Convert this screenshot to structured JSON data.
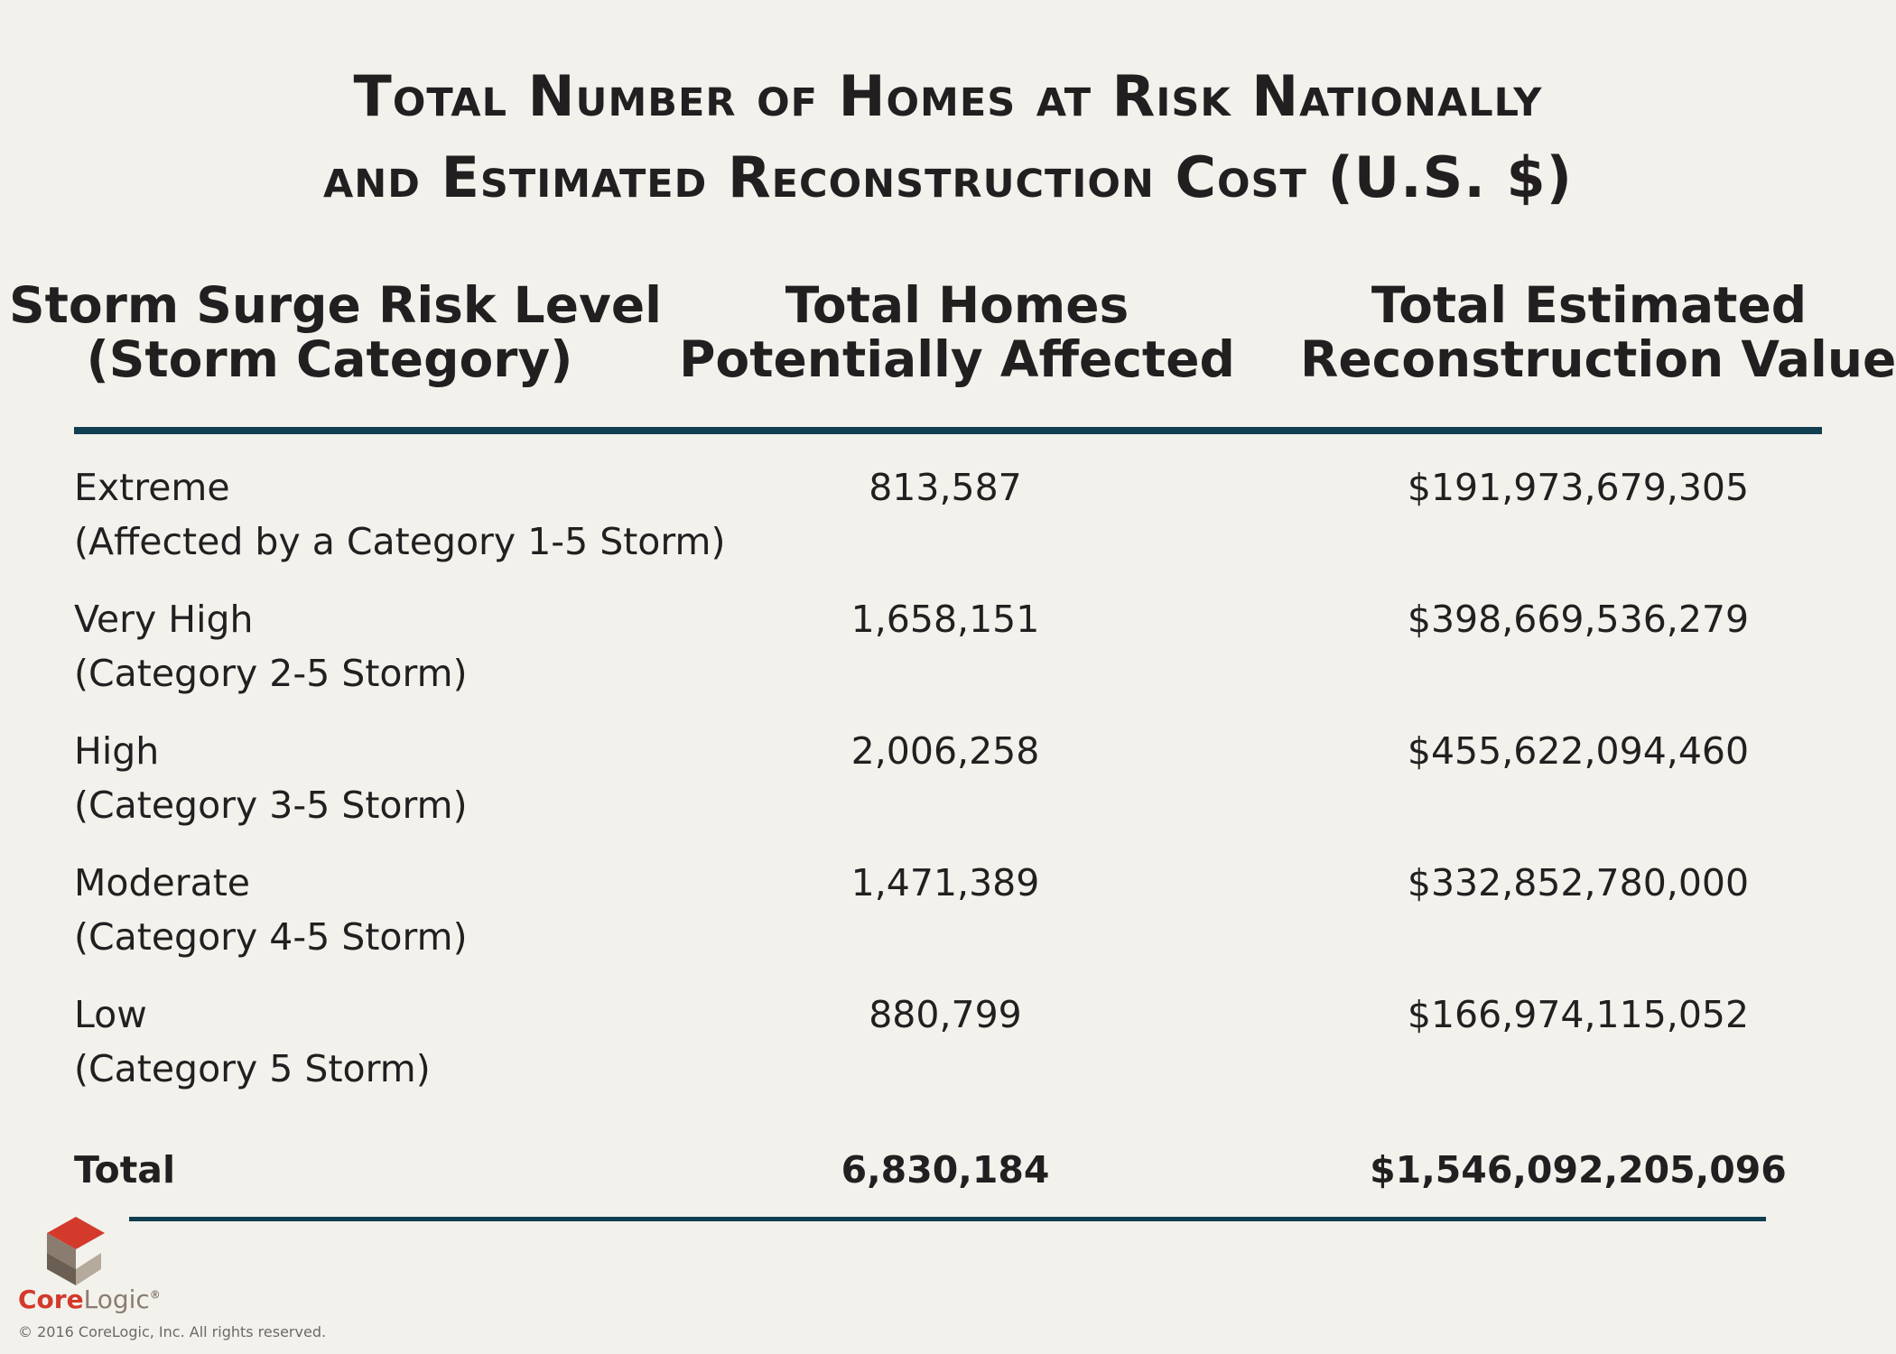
{
  "title": {
    "line1": "Total Number of Homes at Risk Nationally",
    "line2": "and Estimated Reconstruction Cost (U.S. $)"
  },
  "chart_data": {
    "type": "table",
    "title": "Total Number of Homes at Risk Nationally and Estimated Reconstruction Cost (U.S. $)",
    "columns": [
      {
        "line1": "Storm Surge Risk Level",
        "line2": "(Storm Category)"
      },
      {
        "line1": "Total Homes",
        "line2": "Potentially Affected"
      },
      {
        "line1": "Total Estimated",
        "line2": "Reconstruction Value"
      }
    ],
    "rows": [
      {
        "level": "Extreme",
        "category": "(Affected by a Category 1-5 Storm)",
        "homes": "813,587",
        "value": "$191,973,679,305"
      },
      {
        "level": "Very High",
        "category": "(Category 2-5 Storm)",
        "homes": "1,658,151",
        "value": "$398,669,536,279"
      },
      {
        "level": "High",
        "category": "(Category 3-5 Storm)",
        "homes": "2,006,258",
        "value": "$455,622,094,460"
      },
      {
        "level": "Moderate",
        "category": "(Category 4-5 Storm)",
        "homes": "1,471,389",
        "value": "$332,852,780,000"
      },
      {
        "level": "Low",
        "category": "(Category 5 Storm)",
        "homes": "880,799",
        "value": "$166,974,115,052"
      }
    ],
    "total": {
      "label": "Total",
      "homes": "6,830,184",
      "value": "$1,546,092,205,096"
    }
  },
  "footer": {
    "brand_core": "Core",
    "brand_logic": "Logic",
    "brand_mark": "®",
    "copyright": "© 2016 CoreLogic, Inc. All rights reserved."
  },
  "colors": {
    "background": "#f2f1ec",
    "rule": "#123e52",
    "text": "#231f20",
    "logo_red": "#d33a2c",
    "logo_brown": "#8a7d70"
  }
}
